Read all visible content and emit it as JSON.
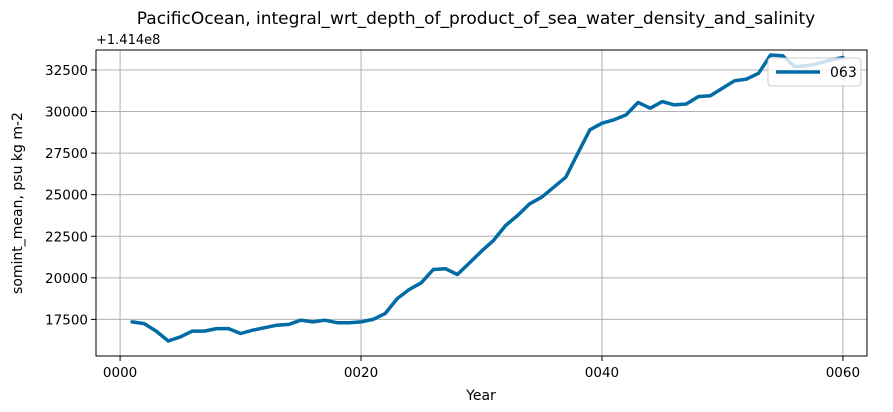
{
  "chart_data": {
    "type": "line",
    "title": "PacificOcean, integral_wrt_depth_of_product_of_sea_water_density_and_salinity",
    "xlabel": "Year",
    "ylabel": "somint_mean, psu kg m-2",
    "y_offset_label": "+1.414e8",
    "x_ticks": [
      "0000",
      "0020",
      "0040",
      "0060"
    ],
    "x_tick_values": [
      0,
      20,
      40,
      60
    ],
    "y_ticks": [
      17500,
      20000,
      22500,
      25000,
      27500,
      30000,
      32500
    ],
    "y_tick_labels": [
      "17500",
      "20000",
      "22500",
      "25000",
      "27500",
      "30000",
      "32500"
    ],
    "xlim": [
      -2,
      62
    ],
    "ylim": [
      15300,
      33700
    ],
    "grid": true,
    "legend_position": "upper right",
    "series": [
      {
        "name": "063",
        "color": "#006ba4",
        "x": [
          1,
          2,
          3,
          4,
          5,
          6,
          7,
          8,
          9,
          10,
          11,
          12,
          13,
          14,
          15,
          16,
          17,
          18,
          19,
          20,
          21,
          22,
          23,
          24,
          25,
          26,
          27,
          28,
          29,
          30,
          31,
          32,
          33,
          34,
          35,
          36,
          37,
          38,
          39,
          40,
          41,
          42,
          43,
          44,
          45,
          46,
          47,
          48,
          49,
          50,
          51,
          52,
          53,
          54,
          55,
          56,
          57,
          58,
          59,
          60
        ],
        "y": [
          17350,
          17250,
          16800,
          16200,
          16450,
          16800,
          16800,
          16950,
          16950,
          16650,
          16850,
          17000,
          17150,
          17200,
          17450,
          17350,
          17450,
          17300,
          17300,
          17350,
          17500,
          17850,
          18750,
          19300,
          19700,
          20500,
          20550,
          20200,
          20900,
          21600,
          22250,
          23150,
          23750,
          24450,
          24850,
          25450,
          26050,
          27500,
          28900,
          29300,
          29500,
          29800,
          30550,
          30200,
          30600,
          30400,
          30450,
          30900,
          30950,
          31400,
          31850,
          31950,
          32300,
          33400,
          33350,
          32700,
          32750,
          32900,
          33100,
          33250
        ]
      }
    ]
  }
}
